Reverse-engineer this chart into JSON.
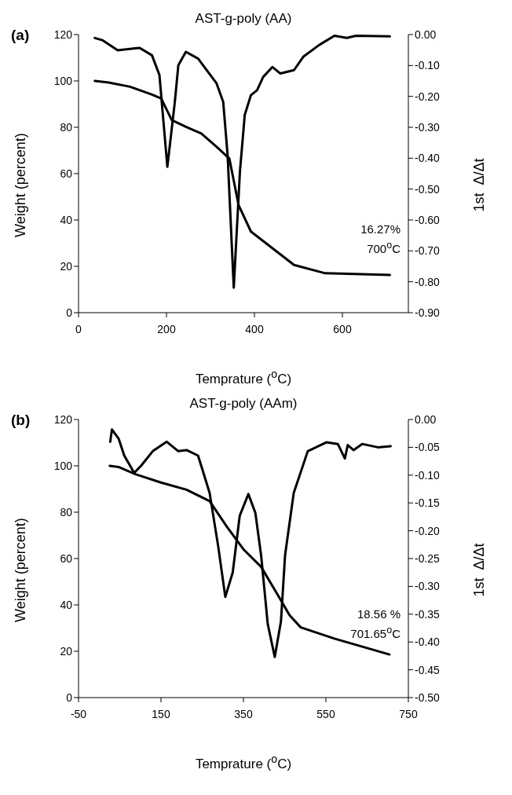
{
  "chart_data": [
    {
      "type": "line",
      "title": "AST-g-poly (AA)",
      "xlabel": "Temprature ($^{o}$C)",
      "ylabel": "Weight (percent)",
      "y2label": "1st  Δ/Δt",
      "annotations": [
        "(a)",
        "16.27%",
        "700$^{o}$C"
      ],
      "xlim": [
        0,
        750
      ],
      "xticks": [
        0,
        200,
        400,
        600
      ],
      "ylim": [
        0,
        120
      ],
      "yticks": [
        0,
        20,
        40,
        60,
        80,
        100,
        120
      ],
      "y2lim": [
        -0.9,
        0
      ],
      "y2ticks": [
        {
          "value": -0.9,
          "label": "-0.90"
        },
        {
          "value": -0.8,
          "label": "-0.80"
        },
        {
          "value": -0.7,
          "label": "-0.70"
        },
        {
          "value": -0.6,
          "label": "-0.60"
        },
        {
          "value": -0.5,
          "label": "-0.50"
        },
        {
          "value": -0.4,
          "label": "-0.40"
        },
        {
          "value": -0.3,
          "label": "-0.30"
        },
        {
          "value": -0.2,
          "label": "-0.20"
        },
        {
          "value": -0.1,
          "label": "-0.10"
        },
        {
          "value": 0,
          "label": "0.00"
        }
      ],
      "marker": "none",
      "line_style": "solid",
      "series": [
        {
          "color": "#000000",
          "x": [
            37,
            68,
            117,
            167,
            188,
            212,
            244,
            279,
            314,
            343,
            364,
            392,
            441,
            490,
            561,
            708
          ],
          "values": [
            100,
            99.3,
            97.5,
            94.1,
            92.4,
            83.1,
            80.2,
            77.3,
            71.6,
            66.5,
            46.4,
            35,
            27.8,
            20.6,
            17,
            16.3
          ]
        },
        {
          "color": "#000000",
          "axis": "y2",
          "x": [
            37,
            54,
            89,
            125,
            139,
            167,
            184,
            202,
            219,
            227,
            244,
            272,
            314,
            329,
            339,
            353,
            367,
            378,
            392,
            406,
            420,
            441,
            459,
            490,
            511,
            547,
            582,
            610,
            631,
            708
          ],
          "values": [
            -0.011,
            -0.018,
            -0.051,
            -0.045,
            -0.043,
            -0.067,
            -0.131,
            -0.428,
            -0.218,
            -0.099,
            -0.056,
            -0.078,
            -0.158,
            -0.218,
            -0.39,
            -0.819,
            -0.444,
            -0.26,
            -0.196,
            -0.18,
            -0.137,
            -0.105,
            -0.126,
            -0.115,
            -0.072,
            -0.034,
            -0.004,
            -0.011,
            -0.004,
            -0.006
          ]
        }
      ]
    },
    {
      "type": "line",
      "title": "AST-g-poly (AAm)",
      "xlabel": "Temprature ($^{o}$C)",
      "ylabel": "Weight (percent)",
      "y2label": "1st  Δ/Δt",
      "annotations": [
        "(b)",
        "18.56 %",
        "701.65$^{o}$C"
      ],
      "xlim": [
        -50,
        750
      ],
      "xticks": [
        -50,
        150,
        350,
        550,
        750
      ],
      "ylim": [
        0,
        120
      ],
      "yticks": [
        0,
        20,
        40,
        60,
        80,
        100,
        120
      ],
      "y2lim": [
        -0.5,
        0
      ],
      "y2ticks": [
        {
          "value": -0.5,
          "label": "-0.50"
        },
        {
          "value": -0.45,
          "label": "-0.45"
        },
        {
          "value": -0.4,
          "label": "-0.40"
        },
        {
          "value": -0.35,
          "label": "-0.35"
        },
        {
          "value": -0.3,
          "label": "-0.30"
        },
        {
          "value": -0.25,
          "label": "-0.25"
        },
        {
          "value": -0.2,
          "label": "-0.20"
        },
        {
          "value": -0.15,
          "label": "-0.15"
        },
        {
          "value": -0.1,
          "label": "-0.10"
        },
        {
          "value": -0.05,
          "label": "-0.05"
        },
        {
          "value": 0,
          "label": "0.00"
        }
      ],
      "marker": "none",
      "line_style": "solid",
      "series": [
        {
          "color": "#000000",
          "x": [
            26,
            47,
            88,
            150,
            212,
            268,
            310,
            351,
            393,
            434,
            462,
            489,
            572,
            704
          ],
          "values": [
            100,
            99.5,
            96.4,
            92.8,
            89.7,
            84.8,
            73.7,
            63.8,
            56.4,
            44.1,
            35.5,
            30.3,
            25.4,
            18.6
          ]
        },
        {
          "color": "#000000",
          "axis": "y2",
          "x": [
            27,
            31,
            47,
            61,
            85,
            102,
            130,
            164,
            192,
            212,
            240,
            268,
            289,
            306,
            324,
            341,
            362,
            379,
            393,
            409,
            426,
            441,
            451,
            472,
            506,
            551,
            579,
            596,
            603,
            617,
            638,
            676,
            707
          ],
          "values": [
            -0.04,
            -0.018,
            -0.034,
            -0.065,
            -0.096,
            -0.083,
            -0.057,
            -0.04,
            -0.057,
            -0.055,
            -0.065,
            -0.132,
            -0.229,
            -0.319,
            -0.275,
            -0.173,
            -0.134,
            -0.168,
            -0.245,
            -0.368,
            -0.427,
            -0.363,
            -0.244,
            -0.132,
            -0.057,
            -0.041,
            -0.044,
            -0.07,
            -0.046,
            -0.055,
            -0.044,
            -0.05,
            -0.048
          ]
        }
      ]
    }
  ]
}
